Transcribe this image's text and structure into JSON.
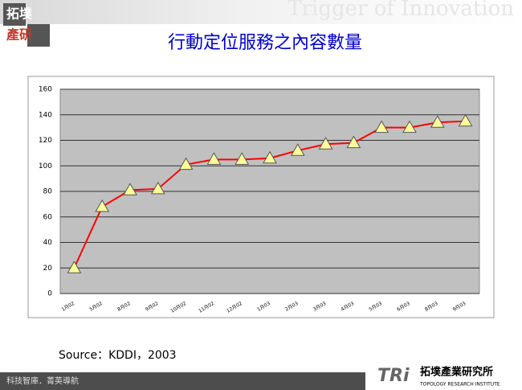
{
  "header": {
    "logo_top": "拓墣",
    "logo_bottom": "產研",
    "watermark": "Trigger of Innovation"
  },
  "chart_data": {
    "type": "line",
    "title": "行動定位服務之內容數量",
    "categories": [
      "1月02",
      "5月02",
      "8月02",
      "9月02",
      "10月02",
      "11月02",
      "12月02",
      "1月03",
      "2月03",
      "3月03",
      "4月03",
      "5月03",
      "6月03",
      "8月03",
      "9月03"
    ],
    "series": [
      {
        "name": "內容數量",
        "color": "#ff0000",
        "marker_color": "#ffff99",
        "values": [
          20,
          68,
          81,
          82,
          101,
          105,
          105,
          106,
          112,
          117,
          118,
          130,
          130,
          134,
          135
        ]
      }
    ],
    "ylim": [
      0,
      160
    ],
    "yticks": [
      0,
      20,
      40,
      60,
      80,
      100,
      120,
      140,
      160
    ],
    "grid": true,
    "source": "Source：KDDI，2003"
  },
  "footer": {
    "slogan": "科技智庫．菁英導航",
    "brand": "TRi",
    "org_name": "拓墣產業研究所",
    "org_english": "TOPOLOGY RESEARCH INSTITUTE"
  }
}
